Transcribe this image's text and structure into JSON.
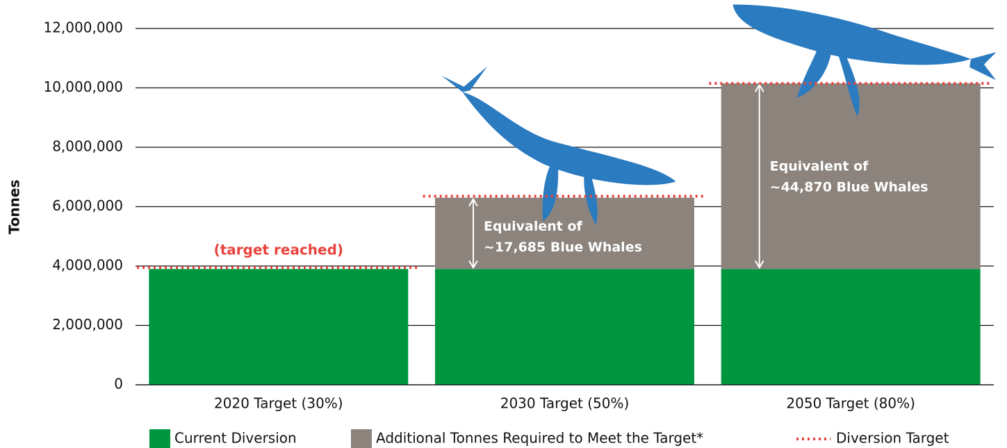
{
  "chart_data": {
    "type": "bar",
    "y_label": "Tonnes",
    "categories": [
      "2020 Target (30%)",
      "2030 Target (50%)",
      "2050 Target (80%)"
    ],
    "series": [
      {
        "name": "Current Diversion",
        "color": "#00963f",
        "values": [
          3900000,
          3900000,
          3900000
        ]
      },
      {
        "name": "Additional Tonnes Required to Meet the Target*",
        "color": "#8b837c",
        "values": [
          0,
          2400000,
          6250000
        ]
      },
      {
        "name": "Diversion Target",
        "color": "#e8433c",
        "values": [
          3950000,
          6350000,
          10150000
        ]
      }
    ],
    "annotations": [
      "(target reached)",
      [
        "Equivalent of",
        "~17,685 Blue Whales"
      ],
      [
        "Equivalent of",
        "~44,870 Blue Whales"
      ]
    ],
    "ylim": [
      0,
      12000000
    ],
    "yticks": [
      0,
      {
        "value": 2000000,
        "label": "2,000,000"
      },
      {
        "value": 4000000,
        "label": "4,000,000"
      },
      {
        "value": 6000000,
        "label": "6,000,000"
      },
      {
        "value": 8000000,
        "label": "8,000,000"
      },
      {
        "value": 10000000,
        "label": "10,000,000"
      },
      {
        "value": 12000000,
        "label": "12,000,000"
      }
    ],
    "grid": true
  }
}
